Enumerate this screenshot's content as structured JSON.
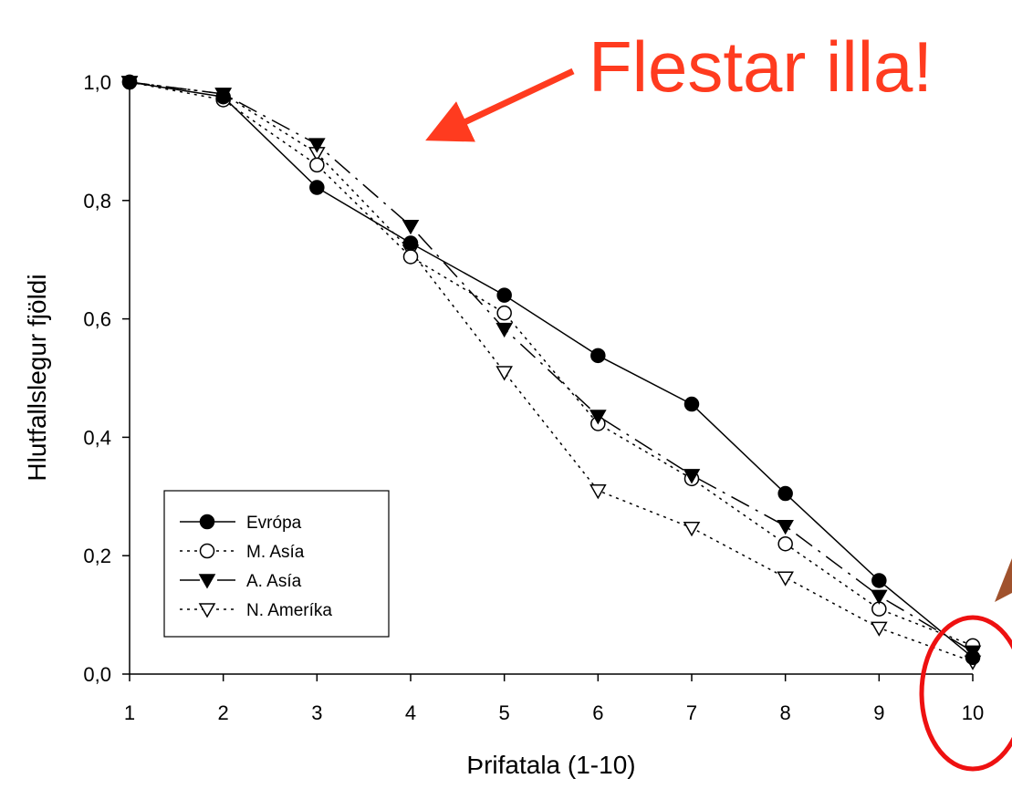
{
  "chart_data": {
    "type": "line",
    "title": "",
    "xlabel": "Þrifatala (1-10)",
    "ylabel": "Hlutfallslegur fjöldi",
    "xlim": [
      1,
      10
    ],
    "ylim": [
      0,
      1
    ],
    "x_ticks": [
      {
        "value": 1,
        "label": "1"
      },
      {
        "value": 2,
        "label": "2"
      },
      {
        "value": 3,
        "label": "3"
      },
      {
        "value": 4,
        "label": "4"
      },
      {
        "value": 5,
        "label": "5"
      },
      {
        "value": 6,
        "label": "6"
      },
      {
        "value": 7,
        "label": "7"
      },
      {
        "value": 8,
        "label": "8"
      },
      {
        "value": 9,
        "label": "9"
      },
      {
        "value": 10,
        "label": "10"
      }
    ],
    "y_ticks": [
      {
        "value": 0.0,
        "label": "0,0"
      },
      {
        "value": 0.2,
        "label": "0,2"
      },
      {
        "value": 0.4,
        "label": "0,4"
      },
      {
        "value": 0.6,
        "label": "0,6"
      },
      {
        "value": 0.8,
        "label": "0,8"
      },
      {
        "value": 1.0,
        "label": "1,0"
      }
    ],
    "grid": false,
    "legend_position": "bottom-left",
    "x": [
      1,
      2,
      3,
      4,
      5,
      6,
      7,
      8,
      9,
      10
    ],
    "series": [
      {
        "name": "Evrópa",
        "marker": "filled-circle",
        "line": "solid",
        "values": [
          1.0,
          0.975,
          0.822,
          0.728,
          0.64,
          0.538,
          0.456,
          0.305,
          0.158,
          0.028
        ]
      },
      {
        "name": "M. Asía",
        "marker": "open-circle",
        "line": "dotted",
        "values": [
          1.0,
          0.97,
          0.86,
          0.705,
          0.61,
          0.423,
          0.33,
          0.22,
          0.11,
          0.048
        ]
      },
      {
        "name": "A. Asía",
        "marker": "filled-triangle-down",
        "line": "dash-dot",
        "values": [
          1.0,
          0.98,
          0.895,
          0.757,
          0.583,
          0.436,
          0.336,
          0.25,
          0.132,
          0.038
        ]
      },
      {
        "name": "N. Ameríka",
        "marker": "open-triangle-down",
        "line": "dotted",
        "values": [
          1.0,
          0.98,
          0.88,
          0.715,
          0.51,
          0.31,
          0.247,
          0.163,
          0.078,
          0.021
        ]
      }
    ],
    "annotations": [
      {
        "text": "Flestar illa!",
        "color": "#ff3b1f"
      }
    ],
    "colors": {
      "arrow": "#ff3b1f",
      "circle": "#ee1111",
      "side_arrow": "#a0522d",
      "ink": "#000000"
    }
  }
}
